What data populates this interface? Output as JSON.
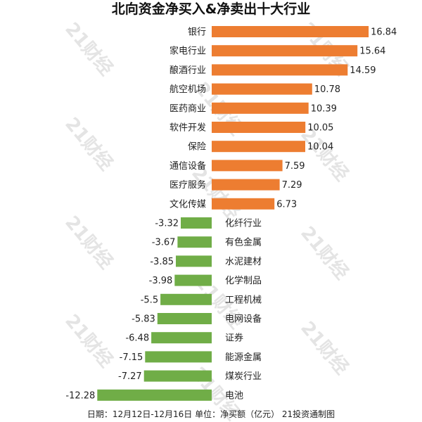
{
  "title": "北向资金净买入&净卖出十大行业",
  "footer": "日期：12月12日-12月16日  单位：净买额（亿元） 21投资通制图",
  "watermark_text": "21财经",
  "colors": {
    "positive_bar": "#ED7D31",
    "negative_bar": "#70AD47",
    "text": "#222222"
  },
  "chart_data": {
    "type": "bar",
    "orientation": "horizontal",
    "title": "北向资金净买入&净卖出十大行业",
    "unit": "净买额（亿元）",
    "categories": [
      "银行",
      "家电行业",
      "酿酒行业",
      "航空机场",
      "医药商业",
      "软件开发",
      "保险",
      "通信设备",
      "医疗服务",
      "文化传媒",
      "化纤行业",
      "有色金属",
      "水泥建材",
      "化学制品",
      "工程机械",
      "电网设备",
      "证券",
      "能源金属",
      "煤炭行业",
      "电池"
    ],
    "values": [
      16.84,
      15.64,
      14.59,
      10.78,
      10.39,
      10.05,
      10.04,
      7.59,
      7.29,
      6.73,
      -3.32,
      -3.67,
      -3.85,
      -3.98,
      -5.5,
      -5.83,
      -6.48,
      -7.15,
      -7.27,
      -12.28
    ],
    "value_labels": [
      "16.84",
      "15.64",
      "14.59",
      "10.78",
      "10.39",
      "10.05",
      "10.04",
      "7.59",
      "7.29",
      "6.73",
      "-3.32",
      "-3.67",
      "-3.85",
      "-3.98",
      "-5.5",
      "-5.83",
      "-6.48",
      "-7.15",
      "-7.27",
      "-12.28"
    ],
    "xlim": [
      -12.28,
      16.84
    ],
    "grid": false,
    "legend": false
  }
}
